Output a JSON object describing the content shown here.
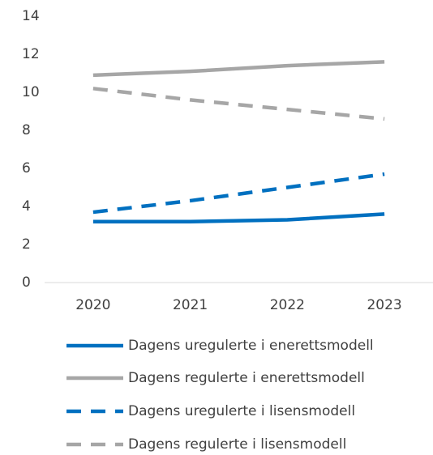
{
  "chart_data": {
    "type": "line",
    "categories": [
      "2020",
      "2021",
      "2022",
      "2023"
    ],
    "series": [
      {
        "name": "Dagens uregulerte i enerettsmodell",
        "color": "#0070c0",
        "dash": false,
        "values": [
          3.2,
          3.2,
          3.3,
          3.6
        ]
      },
      {
        "name": "Dagens regulerte i enerettsmodell",
        "color": "#a6a6a6",
        "dash": false,
        "values": [
          10.9,
          11.1,
          11.4,
          11.6
        ]
      },
      {
        "name": "Dagens uregulerte i lisensmodell",
        "color": "#0070c0",
        "dash": true,
        "values": [
          3.7,
          4.3,
          5.0,
          5.7
        ]
      },
      {
        "name": "Dagens regulerte i lisensmodell",
        "color": "#a6a6a6",
        "dash": true,
        "values": [
          10.2,
          9.6,
          9.1,
          8.6
        ]
      }
    ],
    "ylim": [
      0,
      14
    ],
    "yticks": [
      0,
      2,
      4,
      6,
      8,
      10,
      12,
      14
    ],
    "grid": false,
    "legend": "bottom"
  }
}
